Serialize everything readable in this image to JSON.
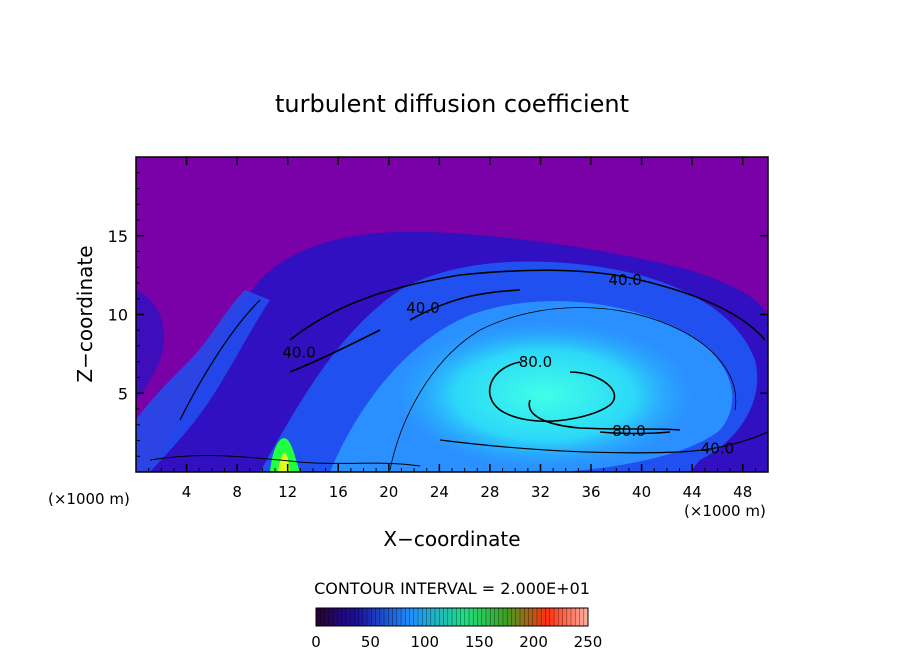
{
  "chart_data": {
    "type": "heatmap",
    "title": "turbulent diffusion coefficient",
    "xlabel": "X−coordinate",
    "ylabel": "Z−coordinate",
    "x_unit_left": "(×1000 m)",
    "x_unit_right": "(×1000 m)",
    "xlim": [
      0,
      50
    ],
    "ylim": [
      0,
      20
    ],
    "x_ticks": [
      4,
      8,
      12,
      16,
      20,
      24,
      28,
      32,
      36,
      40,
      44,
      48
    ],
    "y_ticks": [
      5,
      10,
      15
    ],
    "contour_interval_text": "CONTOUR INTERVAL = 2.000E+01",
    "contour_labels": [
      {
        "text": "40.0",
        "x": 38.7,
        "y": 12.2
      },
      {
        "text": "40.0",
        "x": 22.7,
        "y": 10.4
      },
      {
        "text": "40.0",
        "x": 12.9,
        "y": 7.6
      },
      {
        "text": "80.0",
        "x": 31.6,
        "y": 7.0
      },
      {
        "text": "80.0",
        "x": 39.0,
        "y": 2.6
      },
      {
        "text": "40.0",
        "x": 46.0,
        "y": 1.5
      }
    ],
    "colorbar": {
      "range": [
        0,
        250
      ],
      "tick_labels": [
        "0",
        "50",
        "100",
        "150",
        "200",
        "250"
      ],
      "colors": [
        "#2a0030",
        "#1a10a0",
        "#2090ff",
        "#20ff40",
        "#ff3010",
        "#ffb0a0"
      ]
    },
    "field": {
      "background_value": 0,
      "background_color": "#7a00a8",
      "color_scale": [
        "#3010c0",
        "#2050f0",
        "#2ab0ff",
        "#40ffe8"
      ]
    }
  }
}
